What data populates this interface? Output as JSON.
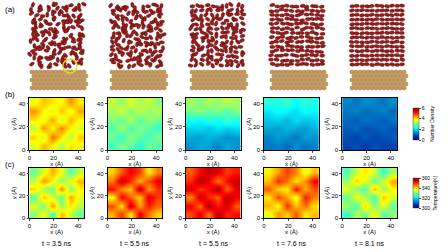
{
  "panel_labels": [
    "(a)",
    "(b)",
    "(c)"
  ],
  "times": [
    "t = 3.5 ns",
    "t = 5.5 ns",
    "t = 5.5 ns",
    "t = 7.6 ns",
    "t = 8.1 ns"
  ],
  "chart_data": [
    {
      "type": "heatmap",
      "x_label": "x (Å)",
      "y_label": "y (Å)",
      "xlim": [
        0,
        45
      ],
      "ylim": [
        0,
        45
      ],
      "xticks": [
        0,
        20,
        40
      ],
      "yticks": [
        0,
        20,
        40
      ],
      "x": [
        3.75,
        11.25,
        18.75,
        26.25,
        33.75,
        41.25
      ],
      "y": [
        3.75,
        11.25,
        18.75,
        26.25,
        33.75,
        41.25
      ],
      "colorbar": {
        "title": "Number Density",
        "range": [
          0,
          6
        ],
        "ticks": [
          0,
          2,
          4,
          6
        ]
      },
      "panels": [
        {
          "cells": [
            [
              3.5,
              4.2,
              3.8,
              3.2,
              4.0,
              3.6
            ],
            [
              4.0,
              3.4,
              4.6,
              3.9,
              3.3,
              4.1
            ],
            [
              3.3,
              4.4,
              3.7,
              4.5,
              3.8,
              3.5
            ],
            [
              3.9,
              3.6,
              4.3,
              3.4,
              4.2,
              3.7
            ],
            [
              4.4,
              3.8,
              3.5,
              4.1,
              3.6,
              4.3
            ],
            [
              3.6,
              4.1,
              3.9,
              3.7,
              4.4,
              3.8
            ]
          ]
        },
        {
          "cells": [
            [
              2.6,
              3.0,
              2.8,
              2.4,
              2.9,
              2.7
            ],
            [
              2.9,
              2.5,
              3.1,
              2.8,
              2.6,
              3.0
            ],
            [
              2.7,
              3.2,
              2.6,
              3.0,
              2.8,
              2.5
            ],
            [
              3.0,
              2.8,
              3.3,
              2.7,
              3.1,
              2.9
            ],
            [
              3.2,
              3.5,
              3.0,
              3.4,
              3.1,
              3.3
            ],
            [
              3.4,
              3.1,
              3.6,
              3.2,
              3.5,
              3.0
            ]
          ]
        },
        {
          "cells": [
            [
              1.4,
              1.6,
              1.5,
              1.3,
              1.6,
              1.4
            ],
            [
              1.6,
              1.5,
              1.7,
              1.6,
              1.4,
              1.5
            ],
            [
              1.9,
              2.0,
              1.8,
              2.1,
              1.9,
              2.0
            ],
            [
              2.4,
              2.2,
              2.5,
              2.3,
              2.6,
              2.4
            ],
            [
              2.9,
              3.1,
              2.8,
              3.0,
              2.7,
              3.0
            ],
            [
              3.2,
              3.0,
              3.3,
              3.1,
              3.4,
              3.2
            ]
          ]
        },
        {
          "cells": [
            [
              1.2,
              1.3,
              1.1,
              1.4,
              1.2,
              1.3
            ],
            [
              1.3,
              1.5,
              1.4,
              1.2,
              1.5,
              1.4
            ],
            [
              1.6,
              1.5,
              1.7,
              1.6,
              1.5,
              1.7
            ],
            [
              1.8,
              1.9,
              1.7,
              2.0,
              1.8,
              1.9
            ],
            [
              2.1,
              2.3,
              2.2,
              2.0,
              2.3,
              2.2
            ],
            [
              2.5,
              2.4,
              2.6,
              2.3,
              2.5,
              2.4
            ]
          ]
        },
        {
          "cells": [
            [
              0.8,
              0.9,
              0.7,
              0.9,
              0.8,
              0.8
            ],
            [
              0.9,
              0.8,
              1.0,
              0.8,
              0.9,
              1.0
            ],
            [
              1.0,
              1.1,
              0.9,
              1.0,
              1.1,
              0.9
            ],
            [
              1.1,
              1.0,
              1.2,
              1.1,
              1.0,
              1.2
            ],
            [
              1.2,
              1.3,
              1.1,
              1.2,
              1.3,
              1.1
            ],
            [
              1.3,
              1.2,
              1.4,
              1.3,
              1.2,
              1.4
            ]
          ]
        }
      ]
    },
    {
      "type": "heatmap",
      "x_label": "x (Å)",
      "y_label": "y (Å)",
      "xlim": [
        0,
        45
      ],
      "ylim": [
        0,
        45
      ],
      "xticks": [
        0,
        20,
        40
      ],
      "yticks": [
        0,
        20,
        40
      ],
      "x": [
        3.75,
        11.25,
        18.75,
        26.25,
        33.75,
        41.25
      ],
      "y": [
        3.75,
        11.25,
        18.75,
        26.25,
        33.75,
        41.25
      ],
      "colorbar": {
        "title": "Temperature(K)",
        "range": [
          300,
          360
        ],
        "ticks": [
          300,
          320,
          340,
          360
        ]
      },
      "panels": [
        {
          "cells": [
            [
              330,
              338,
              326,
              342,
              334,
              328
            ],
            [
              336,
              329,
              344,
              331,
              339,
              333
            ],
            [
              327,
              341,
              335,
              328,
              343,
              336
            ],
            [
              340,
              332,
              329,
              345,
              330,
              338
            ],
            [
              333,
              344,
              338,
              331,
              336,
              342
            ],
            [
              329,
              335,
              342,
              337,
              327,
              334
            ]
          ]
        },
        {
          "cells": [
            [
              342,
              350,
              338,
              354,
              345,
              340
            ],
            [
              348,
              339,
              356,
              343,
              351,
              346
            ],
            [
              337,
              353,
              347,
              340,
              355,
              349
            ],
            [
              352,
              344,
              341,
              357,
              343,
              350
            ],
            [
              345,
              356,
              350,
              342,
              348,
              354
            ],
            [
              340,
              347,
              353,
              349,
              338,
              345
            ]
          ]
        },
        {
          "cells": [
            [
              348,
              354,
              345,
              357,
              350,
              352
            ],
            [
              353,
              346,
              358,
              351,
              355,
              347
            ],
            [
              344,
              356,
              350,
              347,
              357,
              353
            ],
            [
              355,
              349,
              352,
              358,
              346,
              354
            ],
            [
              350,
              357,
              353,
              345,
              352,
              356
            ],
            [
              347,
              352,
              356,
              354,
              349,
              351
            ]
          ]
        },
        {
          "cells": [
            [
              336,
              344,
              340,
              348,
              338,
              342
            ],
            [
              342,
              337,
              350,
              341,
              346,
              339
            ],
            [
              339,
              348,
              343,
              336,
              351,
              345
            ],
            [
              347,
              340,
              338,
              352,
              342,
              348
            ],
            [
              341,
              350,
              346,
              339,
              344,
              353
            ],
            [
              338,
              343,
              349,
              345,
              336,
              341
            ]
          ]
        },
        {
          "cells": [
            [
              325,
              333,
              329,
              338,
              327,
              331
            ],
            [
              332,
              326,
              340,
              330,
              336,
              328
            ],
            [
              328,
              337,
              333,
              326,
              341,
              335
            ],
            [
              336,
              330,
              327,
              342,
              331,
              338
            ],
            [
              331,
              340,
              336,
              329,
              334,
              343
            ],
            [
              327,
              334,
              339,
              335,
              325,
              332
            ]
          ]
        }
      ]
    }
  ]
}
